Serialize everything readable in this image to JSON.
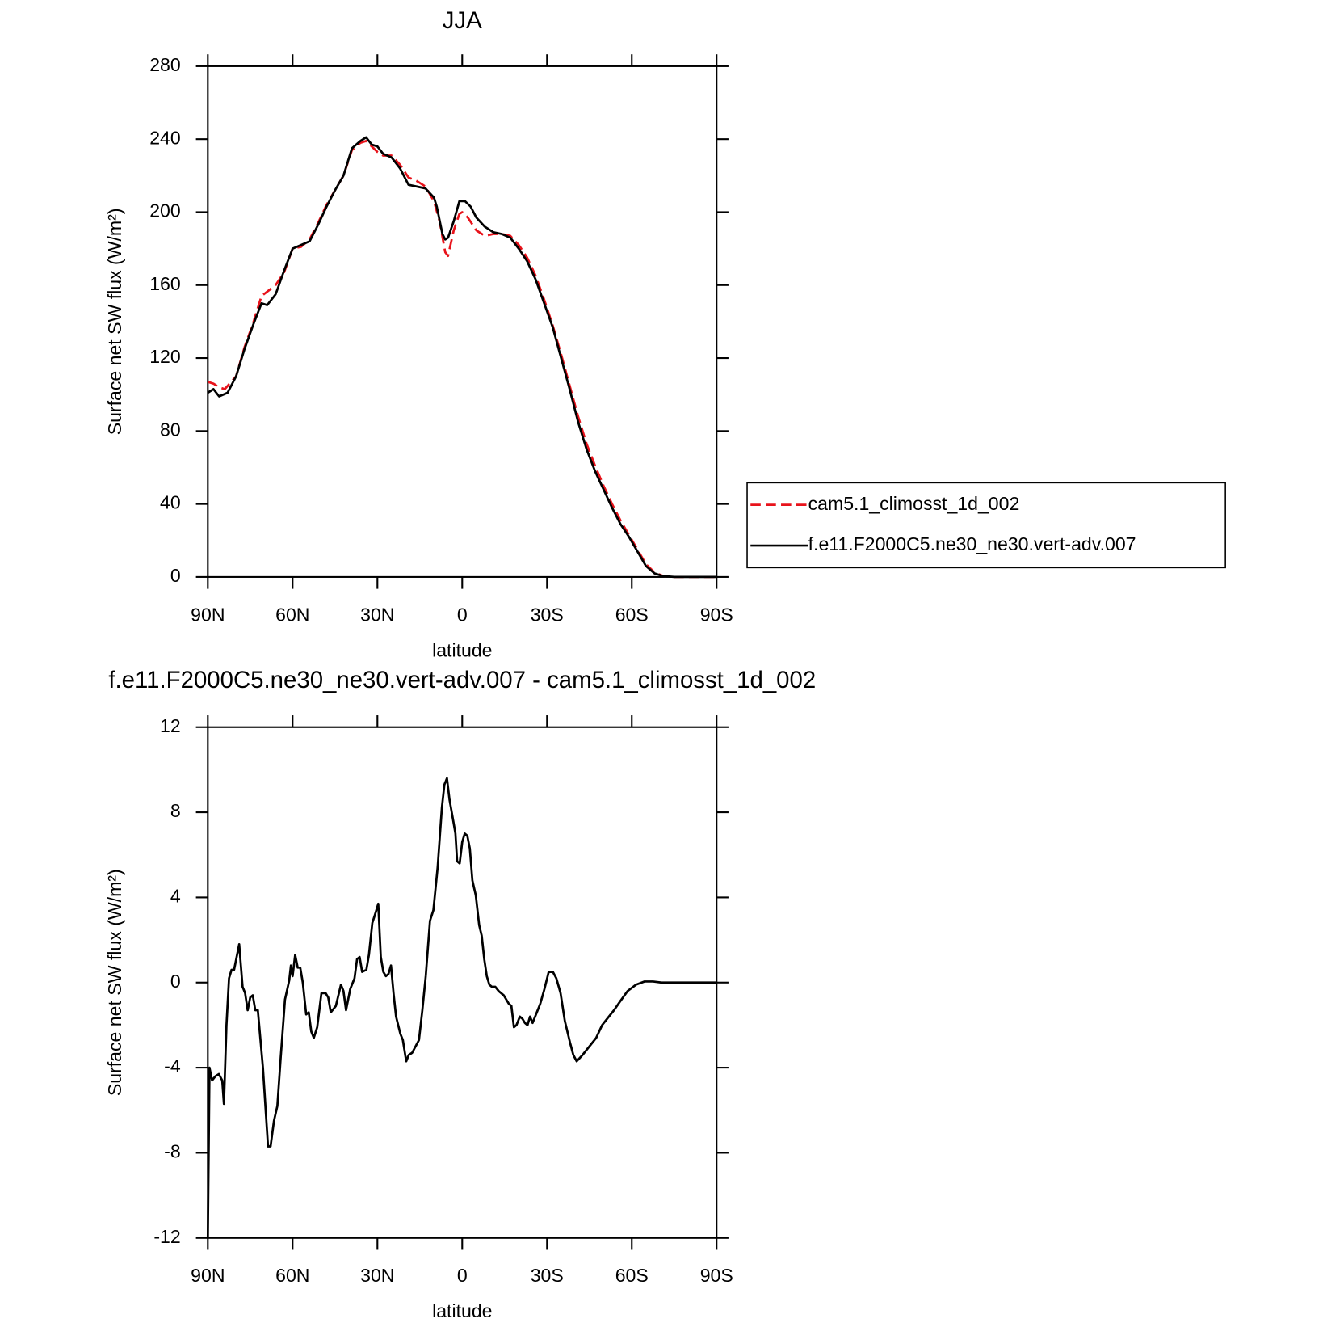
{
  "chart_data": [
    {
      "type": "line",
      "title": "JJA",
      "x_label": "latitude",
      "y_label": "Surface net SW flux (W/m²)",
      "xlim": [
        90,
        -90
      ],
      "xticks": [
        {
          "value": 90,
          "label": "90N"
        },
        {
          "value": 60,
          "label": "60N"
        },
        {
          "value": 30,
          "label": "30N"
        },
        0,
        {
          "value": -30,
          "label": "30S"
        },
        {
          "value": -60,
          "label": "60S"
        },
        {
          "value": -90,
          "label": "90S"
        }
      ],
      "ylim": [
        0,
        280
      ],
      "yticks": [
        0,
        40,
        80,
        120,
        160,
        200,
        240,
        280
      ],
      "legend": "right",
      "series": [
        {
          "name": "cam5.1_climosst_1d_002",
          "color": "#e8131b",
          "line_style": "dashed",
          "x": [
            90,
            88,
            86,
            84,
            80,
            77,
            74,
            71,
            66,
            63,
            60,
            57,
            54,
            51,
            48,
            45,
            42,
            39,
            36,
            34,
            32,
            30,
            28,
            25,
            22,
            19,
            16,
            13,
            10,
            8,
            6,
            5,
            3,
            1,
            0,
            -2,
            -5,
            -8,
            -11,
            -14,
            -17,
            -20,
            -23,
            -26,
            -29,
            -32,
            -35,
            -38,
            -41,
            -44,
            -47,
            -50,
            -53,
            -56,
            -59,
            -62,
            -65,
            -68,
            -71,
            -75,
            -80,
            -90
          ],
          "values": [
            107,
            106,
            104,
            103,
            110,
            126,
            139,
            154,
            160,
            167,
            180,
            181,
            185,
            194,
            204,
            212,
            220,
            234,
            238,
            239,
            236,
            233,
            231,
            231,
            226,
            219,
            217,
            214,
            206,
            195,
            178,
            176,
            190,
            199,
            200,
            197,
            190,
            187,
            188,
            188,
            187,
            182,
            175,
            165,
            152,
            138,
            122,
            105,
            88,
            73,
            61,
            50,
            40,
            31,
            23,
            15,
            7,
            2.5,
            0.6,
            0,
            0,
            0
          ]
        },
        {
          "name": "f.e11.F2000C5.ne30_ne30.vert-adv.007",
          "color": "#000000",
          "line_style": "solid",
          "x": [
            90,
            88,
            86,
            83,
            80,
            77,
            74,
            71,
            69,
            66,
            63,
            60,
            57,
            54,
            51,
            48,
            45,
            42,
            39,
            36,
            34,
            32,
            30,
            28,
            25,
            22,
            19,
            16,
            13,
            10,
            9,
            7,
            6,
            5,
            3,
            1,
            -1,
            -3,
            -5,
            -8,
            -11,
            -14,
            -17,
            -20,
            -23,
            -26,
            -29,
            -32,
            -35,
            -38,
            -41,
            -44,
            -47,
            -50,
            -53,
            -56,
            -59,
            -62,
            -65,
            -68,
            -71,
            -75,
            -80,
            -90
          ],
          "values": [
            101,
            103,
            99,
            101,
            110,
            125,
            138,
            150,
            149,
            155,
            168,
            180,
            182,
            184,
            193,
            203,
            212,
            220,
            235,
            239,
            241,
            237,
            236,
            232,
            230,
            224,
            215,
            214,
            213,
            208,
            203,
            188,
            185,
            186,
            195,
            206,
            206,
            203,
            197,
            192,
            189,
            188,
            186,
            180,
            173,
            163,
            150,
            137,
            120,
            103,
            85,
            70,
            58,
            48,
            38,
            29,
            22,
            14,
            6,
            2,
            0.5,
            0,
            0,
            0
          ]
        }
      ]
    },
    {
      "type": "line",
      "title": "f.e11.F2000C5.ne30_ne30.vert-adv.007 - cam5.1_climosst_1d_002",
      "x_label": "latitude",
      "y_label": "Surface net SW flux (W/m²)",
      "xlim": [
        90,
        -90
      ],
      "xticks": [
        {
          "value": 90,
          "label": "90N"
        },
        {
          "value": 60,
          "label": "60N"
        },
        {
          "value": 30,
          "label": "30N"
        },
        0,
        {
          "value": -30,
          "label": "30S"
        },
        {
          "value": -60,
          "label": "60S"
        },
        {
          "value": -90,
          "label": "90S"
        }
      ],
      "ylim": [
        -12,
        12
      ],
      "yticks": [
        -12,
        -8,
        -4,
        0,
        4,
        8,
        12
      ],
      "series": [
        {
          "color": "#000000",
          "line_style": "solid",
          "x": [
            90,
            89.4,
            88.5,
            87.3,
            86.1,
            84.9,
            84.3,
            83.4,
            82.5,
            81.6,
            80.7,
            78.9,
            77.7,
            76.8,
            75.9,
            75,
            74.1,
            73.2,
            72.3,
            70.5,
            68.7,
            67.8,
            66.6,
            65.4,
            64.2,
            62.7,
            61.2,
            60.6,
            60,
            59.1,
            58.2,
            57.3,
            56.4,
            55.2,
            54.3,
            53.4,
            52.5,
            51.3,
            49.8,
            48.3,
            47.4,
            46.5,
            44.7,
            42.9,
            42,
            41.1,
            39.6,
            38.1,
            37.2,
            36.3,
            35.4,
            33.9,
            33,
            31.8,
            30.6,
            29.7,
            28.8,
            27.9,
            27,
            26.1,
            25.2,
            24.3,
            23.4,
            21.9,
            21,
            19.8,
            18.9,
            17.7,
            16.5,
            15.3,
            14.1,
            12.9,
            11.4,
            10.2,
            8.7,
            7.2,
            6.3,
            5.4,
            4.5,
            3.3,
            2.4,
            1.8,
            0.9,
            0,
            -0.9,
            -1.8,
            -2.7,
            -3.6,
            -4.8,
            -6,
            -6.9,
            -7.8,
            -8.7,
            -9.6,
            -10.5,
            -11.7,
            -12.9,
            -14.7,
            -16.5,
            -17.4,
            -18.3,
            -19.2,
            -20.4,
            -21.3,
            -22.2,
            -23.1,
            -24,
            -24.9,
            -26.1,
            -27.6,
            -29.1,
            -30.6,
            -32.1,
            -33.3,
            -34.8,
            -36.3,
            -38.1,
            -39.3,
            -40.5,
            -42.6,
            -43.8,
            -45.6,
            -47.4,
            -49.5,
            -51.3,
            -53.7,
            -55.8,
            -58.5,
            -61.5,
            -64.5,
            -67.5,
            -70.5,
            -90
          ],
          "values": [
            -12,
            -4,
            -4.6,
            -4.4,
            -4.3,
            -4.6,
            -5.7,
            -2,
            0.2,
            0.6,
            0.6,
            1.8,
            -0.2,
            -0.5,
            -1.3,
            -0.7,
            -0.6,
            -1.3,
            -1.3,
            -4,
            -7.7,
            -7.7,
            -6.5,
            -5.8,
            -3.5,
            -0.8,
            0.1,
            0.8,
            0.3,
            1.3,
            0.7,
            0.7,
            0,
            -1.5,
            -1.4,
            -2.3,
            -2.6,
            -2.1,
            -0.5,
            -0.5,
            -0.7,
            -1.4,
            -1.1,
            -0.1,
            -0.4,
            -1.3,
            -0.3,
            0.2,
            1.1,
            1.2,
            0.5,
            0.6,
            1.3,
            2.8,
            3.3,
            3.7,
            1.2,
            0.5,
            0.3,
            0.4,
            0.8,
            -0.5,
            -1.6,
            -2.4,
            -2.7,
            -3.7,
            -3.4,
            -3.3,
            -3,
            -2.7,
            -1.3,
            0.3,
            2.9,
            3.4,
            5.4,
            8.2,
            9.3,
            9.6,
            8.6,
            7.7,
            7,
            5.7,
            5.6,
            6.6,
            7,
            6.9,
            6.3,
            4.8,
            4.1,
            2.7,
            2.2,
            1.1,
            0.3,
            -0.1,
            -0.2,
            -0.2,
            -0.4,
            -0.6,
            -1,
            -1.1,
            -2.1,
            -2,
            -1.6,
            -1.7,
            -1.9,
            -2,
            -1.6,
            -1.9,
            -1.5,
            -1,
            -0.3,
            0.5,
            0.5,
            0.2,
            -0.5,
            -1.8,
            -2.8,
            -3.4,
            -3.7,
            -3.4,
            -3.2,
            -2.9,
            -2.6,
            -2,
            -1.7,
            -1.3,
            -0.9,
            -0.4,
            -0.1,
            0.05,
            0.05,
            0,
            0
          ]
        }
      ]
    }
  ]
}
